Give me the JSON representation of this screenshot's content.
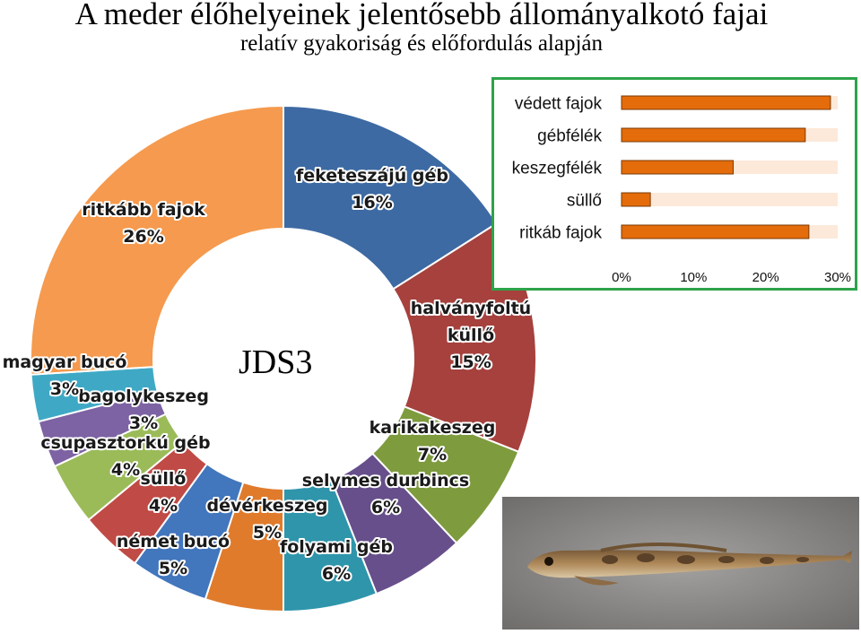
{
  "title": "A meder élőhelyeinek jelentősebb állományalkotó fajai",
  "subtitle": "relatív gyakoriság és előfordulás alapján",
  "center_label": "JDS3",
  "chart_data": [
    {
      "type": "pie",
      "title": "A meder élőhelyeinek jelentősebb állományalkotó fajai",
      "subtitle": "relatív gyakoriság és előfordulás alapján",
      "center_label": "JDS3",
      "unit": "%",
      "slices": [
        {
          "name": "feketeszájú géb",
          "value": 16,
          "label_lines": [
            "feketeszájú géb",
            "16%"
          ],
          "color": "#3d6aa3"
        },
        {
          "name": "halványfoltú küllő",
          "value": 15,
          "label_lines": [
            "halványfoltú",
            "küllő",
            "15%"
          ],
          "color": "#a6413d"
        },
        {
          "name": "karikakeszeg",
          "value": 7,
          "label_lines": [
            "karikakeszeg",
            "7%"
          ],
          "color": "#7e9b3e"
        },
        {
          "name": "selymes durbincs",
          "value": 6,
          "label_lines": [
            "selymes durbincs",
            "6%"
          ],
          "color": "#674f8b"
        },
        {
          "name": "folyami géb",
          "value": 6,
          "label_lines": [
            "folyami géb",
            "6%"
          ],
          "color": "#2f95ab"
        },
        {
          "name": "dévérkeszeg",
          "value": 5,
          "label_lines": [
            "dévérkeszeg",
            "5%"
          ],
          "color": "#e07b2c"
        },
        {
          "name": "német bucó",
          "value": 5,
          "label_lines": [
            "német bucó",
            "5%"
          ],
          "color": "#4276bd"
        },
        {
          "name": "süllő",
          "value": 4,
          "label_lines": [
            "süllő",
            "4%"
          ],
          "color": "#c04a45"
        },
        {
          "name": "csupasztorkú géb",
          "value": 4,
          "label_lines": [
            "csupasztorkú géb",
            "4%"
          ],
          "color": "#9bbb59"
        },
        {
          "name": "bagolykeszeg",
          "value": 3,
          "label_lines": [
            "bagolykeszeg",
            "3%"
          ],
          "color": "#7d63a3"
        },
        {
          "name": "magyar bucó",
          "value": 3,
          "label_lines": [
            "magyar bucó",
            "3%"
          ],
          "color": "#3fa9c5"
        },
        {
          "name": "ritkább fajok",
          "value": 26,
          "label_lines": [
            "ritkább fajok",
            "26%"
          ],
          "color": "#f59a4e"
        }
      ]
    },
    {
      "type": "bar",
      "orientation": "horizontal",
      "categories": [
        "védett fajok",
        "gébfélék",
        "keszegfélék",
        "süllő",
        "ritkáb fajok"
      ],
      "values": [
        29,
        25.5,
        15.5,
        4,
        26
      ],
      "xlim": [
        0,
        30
      ],
      "xticks": [
        "0%",
        "10%",
        "20%",
        "30%"
      ],
      "bar_color": "#e46c0a",
      "track_color": "#fde9d9",
      "grid": false
    }
  ],
  "photo": {
    "subject": "goby-fish-photo",
    "background_color": "#8e8c8a",
    "fish_color": "#a57d4e"
  }
}
